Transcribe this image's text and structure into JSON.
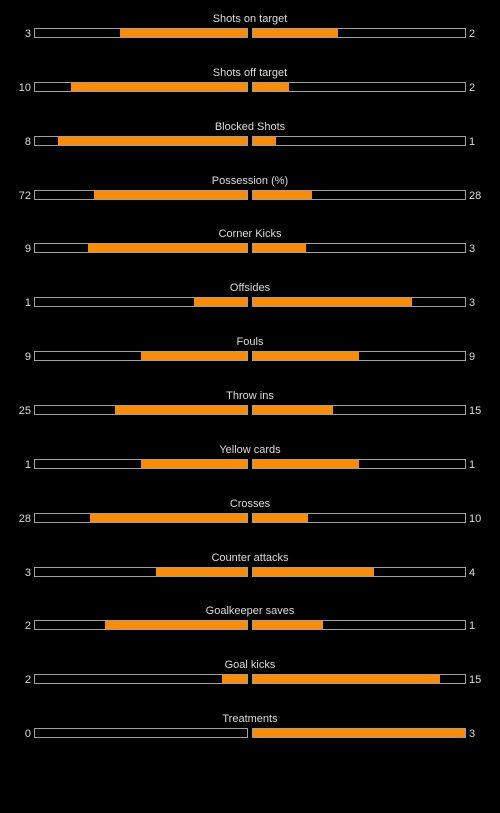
{
  "colors": {
    "background": "#000000",
    "bar_fill": "#ff8c00",
    "bar_border": "#a0a0a0",
    "text": "#dcdcdc"
  },
  "stats": [
    {
      "label": "Shots on target",
      "home": "3",
      "away": "2",
      "home_fill": 0.6,
      "away_fill": 0.4
    },
    {
      "label": "Shots off target",
      "home": "10",
      "away": "2",
      "home_fill": 0.83,
      "away_fill": 0.17
    },
    {
      "label": "Blocked Shots",
      "home": "8",
      "away": "1",
      "home_fill": 0.89,
      "away_fill": 0.11
    },
    {
      "label": "Possession (%)",
      "home": "72",
      "away": "28",
      "home_fill": 0.72,
      "away_fill": 0.28
    },
    {
      "label": "Corner Kicks",
      "home": "9",
      "away": "3",
      "home_fill": 0.75,
      "away_fill": 0.25
    },
    {
      "label": "Offsides",
      "home": "1",
      "away": "3",
      "home_fill": 0.25,
      "away_fill": 0.75
    },
    {
      "label": "Fouls",
      "home": "9",
      "away": "9",
      "home_fill": 0.5,
      "away_fill": 0.5
    },
    {
      "label": "Throw ins",
      "home": "25",
      "away": "15",
      "home_fill": 0.625,
      "away_fill": 0.375
    },
    {
      "label": "Yellow cards",
      "home": "1",
      "away": "1",
      "home_fill": 0.5,
      "away_fill": 0.5
    },
    {
      "label": "Crosses",
      "home": "28",
      "away": "10",
      "home_fill": 0.74,
      "away_fill": 0.26
    },
    {
      "label": "Counter attacks",
      "home": "3",
      "away": "4",
      "home_fill": 0.43,
      "away_fill": 0.57
    },
    {
      "label": "Goalkeeper saves",
      "home": "2",
      "away": "1",
      "home_fill": 0.67,
      "away_fill": 0.33
    },
    {
      "label": "Goal kicks",
      "home": "2",
      "away": "15",
      "home_fill": 0.12,
      "away_fill": 0.88
    },
    {
      "label": "Treatments",
      "home": "0",
      "away": "3",
      "home_fill": 0.0,
      "away_fill": 1.0
    }
  ]
}
